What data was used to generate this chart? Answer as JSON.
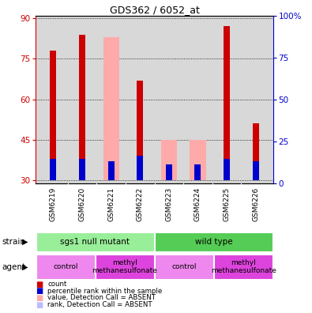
{
  "title": "GDS362 / 6052_at",
  "samples": [
    "GSM6219",
    "GSM6220",
    "GSM6221",
    "GSM6222",
    "GSM6223",
    "GSM6224",
    "GSM6225",
    "GSM6226"
  ],
  "ylim_left": [
    29,
    91
  ],
  "ylim_right": [
    0,
    100
  ],
  "yticks_left": [
    30,
    45,
    60,
    75,
    90
  ],
  "yticks_right": [
    0,
    25,
    50,
    75,
    100
  ],
  "bar_width": 0.55,
  "red_bars": [
    78,
    84,
    0,
    67,
    0,
    0,
    87,
    51
  ],
  "blue_bars": [
    34,
    34,
    33,
    35,
    32,
    32,
    34,
    33
  ],
  "pink_bars": [
    0,
    0,
    83,
    0,
    45,
    45,
    0,
    0
  ],
  "light_purple_bars": [
    0,
    0,
    33,
    0,
    32,
    32,
    0,
    0
  ],
  "red_color": "#cc0000",
  "blue_color": "#0000cc",
  "pink_color": "#ffaaaa",
  "light_purple_color": "#bbbbff",
  "bar_bottom": 30,
  "strain_groups": [
    {
      "label": "sgs1 null mutant",
      "start": 0,
      "end": 4,
      "color": "#99ee99"
    },
    {
      "label": "wild type",
      "start": 4,
      "end": 8,
      "color": "#55cc55"
    }
  ],
  "agent_groups": [
    {
      "label": "control",
      "start": 0,
      "end": 2,
      "color": "#ee88ee"
    },
    {
      "label": "methyl\nmethanesulfonate",
      "start": 2,
      "end": 4,
      "color": "#dd44dd"
    },
    {
      "label": "control",
      "start": 4,
      "end": 6,
      "color": "#ee88ee"
    },
    {
      "label": "methyl\nmethanesulfonate",
      "start": 6,
      "end": 8,
      "color": "#dd44dd"
    }
  ],
  "legend_items": [
    {
      "label": "count",
      "color": "#cc0000"
    },
    {
      "label": "percentile rank within the sample",
      "color": "#0000cc"
    },
    {
      "label": "value, Detection Call = ABSENT",
      "color": "#ffaaaa"
    },
    {
      "label": "rank, Detection Call = ABSENT",
      "color": "#bbbbff"
    }
  ],
  "left_axis_color": "#cc0000",
  "right_axis_color": "#0000cc",
  "background_color": "#ffffff",
  "plot_bg_color": "#d8d8d8",
  "title_fontsize": 9
}
